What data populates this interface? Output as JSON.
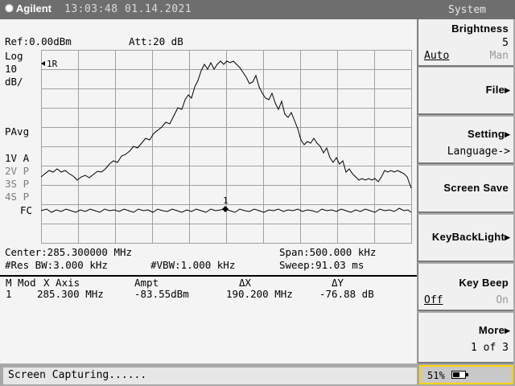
{
  "header": {
    "brand": "Agilent",
    "datetime": "13:03:48 01.14.2021",
    "menu_title": "System",
    "logo_icon": "agilent-spark-icon"
  },
  "screen": {
    "ref": "Ref:0.00dBm",
    "att": "Att:20 dB",
    "scale_log": "Log",
    "scale_value": "10",
    "scale_unit": "dB/",
    "pavg": "PAvg",
    "trace_v": "1V A",
    "trace_2": "2V P",
    "trace_3": "3S P",
    "trace_4": "4S P",
    "fc": "FC",
    "marker_1r": "1R",
    "marker_1": "1",
    "center": "Center:285.300000 MHz",
    "span": "Span:500.000 kHz",
    "rbw": "#Res BW:3.000 kHz",
    "vbw": "#VBW:1.000 kHz",
    "sweep": "Sweep:91.03 ms"
  },
  "marker_table": {
    "headers": [
      "M Mod",
      "X Axis",
      "Ampt",
      "ΔX",
      "ΔY"
    ],
    "row": {
      "marker": "1",
      "x": "285.300 MHz",
      "ampt": "-83.55dBm",
      "dx": "190.200 MHz",
      "dy": "-76.88 dB"
    }
  },
  "softkeys": [
    {
      "label": "Brightness",
      "value": "5",
      "opt_a": "Auto",
      "opt_b": "Man"
    },
    {
      "label": "File"
    },
    {
      "label": "Setting",
      "sub": "Language->"
    },
    {
      "label": "Screen Save"
    },
    {
      "label": "KeyBackLight"
    },
    {
      "label": "Key Beep",
      "opt_a": "Off",
      "opt_b": "On"
    },
    {
      "label": "More",
      "sub": "1 of 3"
    }
  ],
  "status": {
    "message": "Screen Capturing......",
    "battery_pct": "51%",
    "battery_level": 0.51
  },
  "colors": {
    "highlight_border": "#ffd400",
    "screen_bg": "#f4f4f4",
    "bezel": "#a9a9a9"
  }
}
